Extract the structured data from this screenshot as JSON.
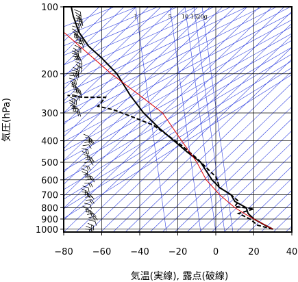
{
  "chart_data": {
    "type": "line",
    "title": "",
    "xlabel": "気温(実線), 露点(破線)",
    "ylabel": "気圧(hPa)",
    "xlim": [
      -80,
      40
    ],
    "ylim": [
      1030,
      100
    ],
    "y_scale": "log",
    "x_ticks": [
      -80,
      -60,
      -40,
      -20,
      0,
      20,
      40
    ],
    "x_tick_labels": [
      "−80",
      "−60",
      "−40",
      "−20",
      "0",
      "20",
      "40"
    ],
    "y_ticks": [
      100,
      200,
      300,
      400,
      500,
      600,
      700,
      800,
      900,
      1000
    ],
    "y_tick_labels": [
      "100",
      "200",
      "300",
      "400",
      "500",
      "600",
      "700",
      "800",
      "900",
      "1000"
    ],
    "grid": true,
    "mixing_ratio_labels": [
      "1",
      "5",
      "10",
      "15",
      "20g"
    ],
    "colors": {
      "temperature": "#000000",
      "dewpoint": "#000000",
      "parcel": "#e00000",
      "background_lines": "#3040e0",
      "grid": "#000000",
      "wind_barbs": "#000000"
    },
    "series": [
      {
        "name": "",
        "style": "solid",
        "x": [
          30,
          25,
          20,
          17,
          16,
          10,
          8,
          2,
          -2,
          -8,
          -15,
          -22,
          -30,
          -38,
          -45,
          -52,
          -60,
          -67,
          -72,
          -75,
          -76
        ],
        "y": [
          1000,
          950,
          900,
          850,
          800,
          750,
          700,
          650,
          600,
          500,
          450,
          400,
          350,
          300,
          250,
          200,
          170,
          150,
          130,
          110,
          100
        ]
      },
      {
        "name": "",
        "style": "dashed",
        "x": [
          30,
          22,
          18,
          12,
          20,
          10,
          12,
          8,
          2,
          0,
          -2,
          -10,
          -18,
          -25,
          -33,
          -45,
          -54,
          -62,
          -58,
          -70,
          -78
        ],
        "y": [
          1000,
          960,
          900,
          850,
          810,
          790,
          750,
          700,
          650,
          580,
          560,
          480,
          420,
          380,
          340,
          310,
          290,
          280,
          255,
          255,
          250
        ]
      },
      {
        "name": "",
        "style": "solid",
        "x": [
          30,
          20,
          15,
          10,
          2,
          -5,
          -10,
          -18,
          -28,
          -40,
          -55,
          -80
        ],
        "y": [
          1000,
          900,
          850,
          800,
          700,
          600,
          500,
          400,
          300,
          250,
          200,
          130
        ]
      }
    ]
  }
}
